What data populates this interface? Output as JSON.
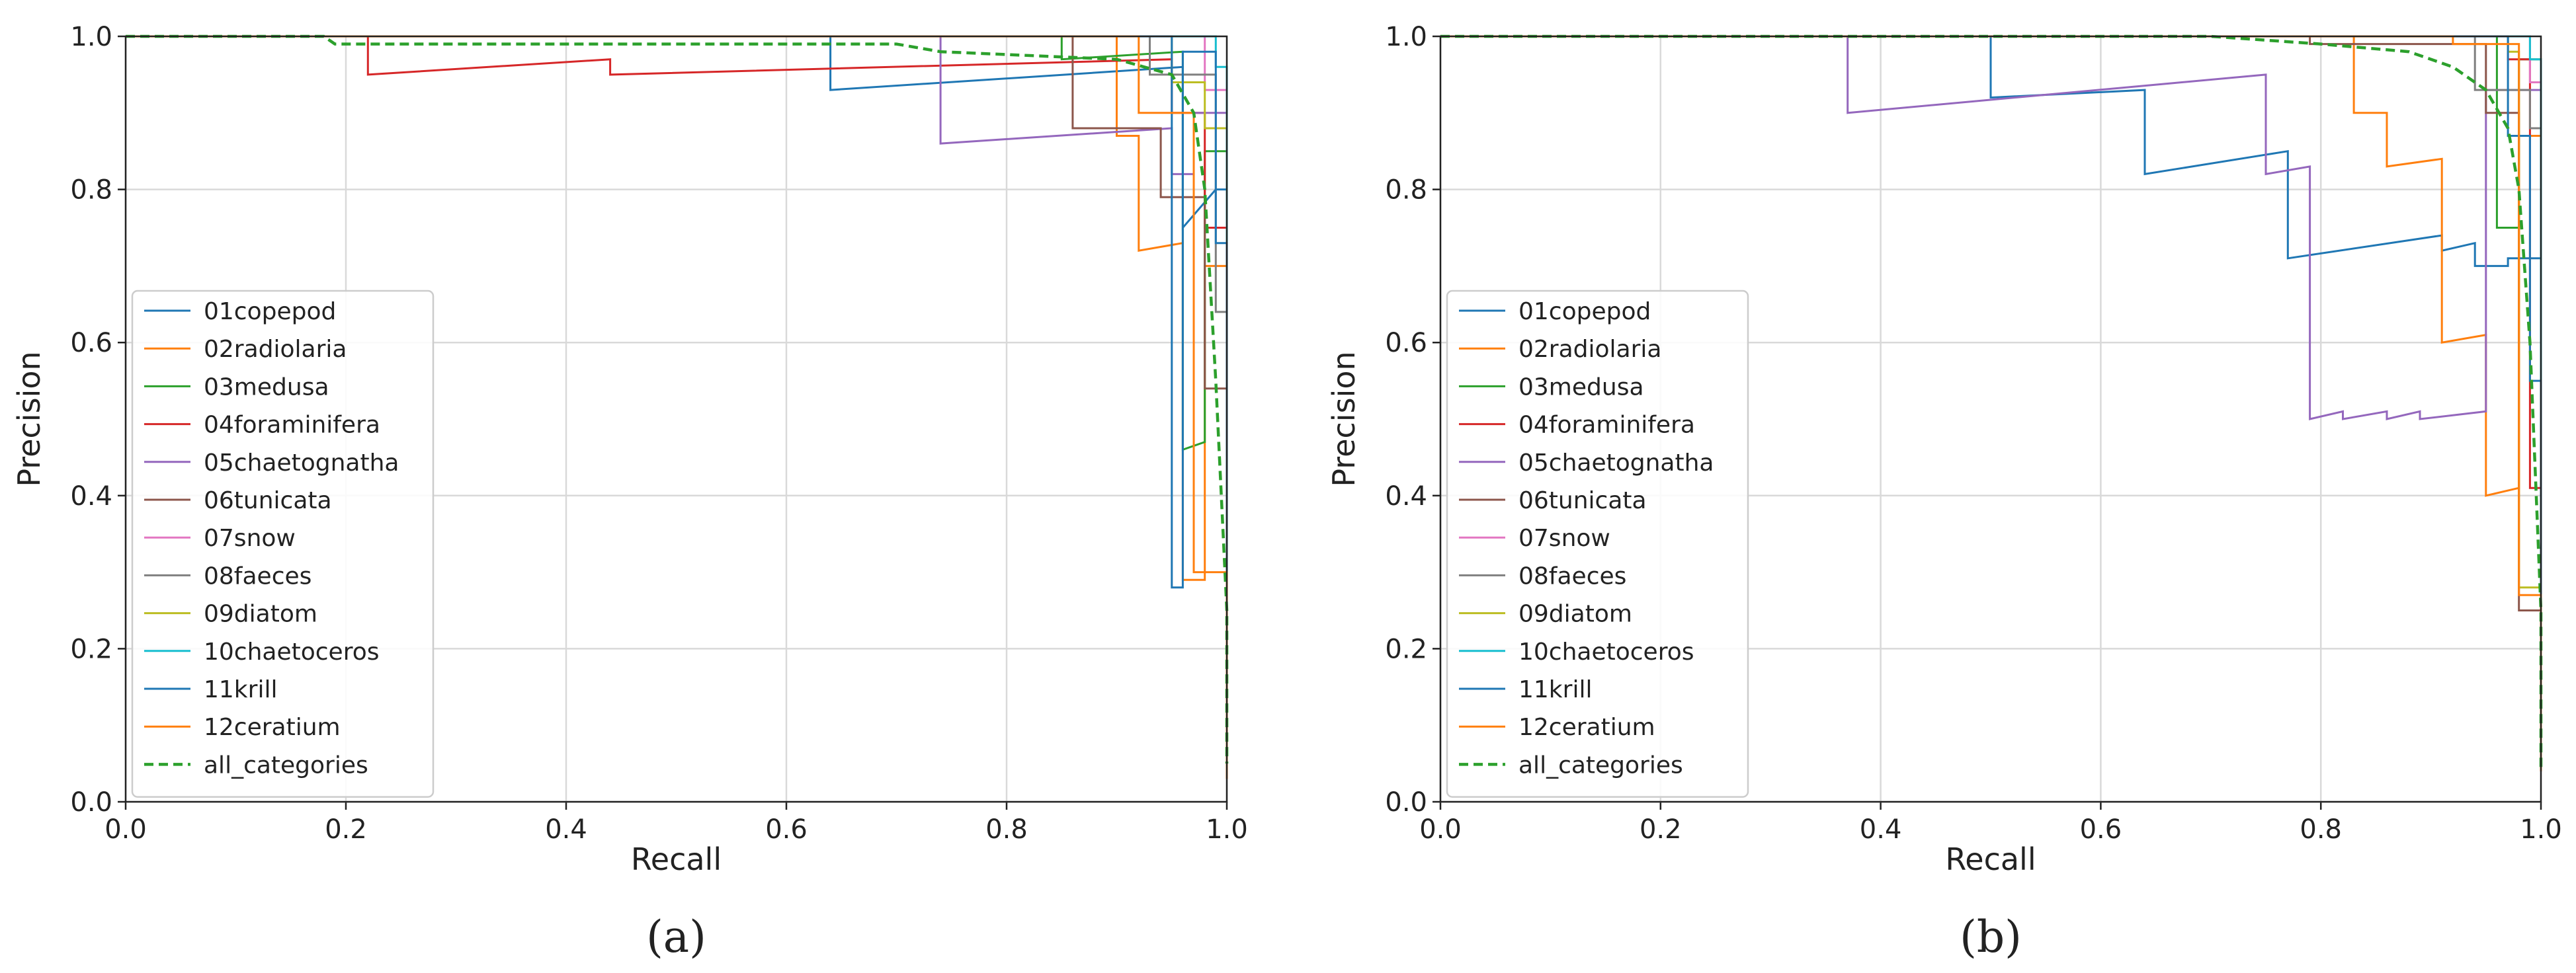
{
  "chart_data": [
    {
      "type": "line",
      "panel": "(a)",
      "xlabel": "Recall",
      "ylabel": "Precision",
      "xlim": [
        0,
        1
      ],
      "ylim": [
        0,
        1
      ],
      "xticks": [
        "0.0",
        "0.2",
        "0.4",
        "0.6",
        "0.8",
        "1.0"
      ],
      "yticks": [
        "0.0",
        "0.2",
        "0.4",
        "0.6",
        "0.8",
        "1.0"
      ],
      "grid": true,
      "legend_position": "center-left",
      "series": [
        {
          "name": "01copepod",
          "color": "#1f77b4",
          "style": "solid",
          "points": [
            [
              0,
              1
            ],
            [
              0.64,
              1
            ],
            [
              0.64,
              0.93
            ],
            [
              0.96,
              0.96
            ],
            [
              0.96,
              0.75
            ],
            [
              0.99,
              0.8
            ],
            [
              1.0,
              0.8
            ],
            [
              1.0,
              0.05
            ]
          ]
        },
        {
          "name": "02radiolaria",
          "color": "#ff7f0e",
          "style": "solid",
          "points": [
            [
              0,
              1
            ],
            [
              0.9,
              1
            ],
            [
              0.9,
              0.87
            ],
            [
              0.92,
              0.87
            ],
            [
              0.92,
              0.72
            ],
            [
              0.96,
              0.73
            ],
            [
              0.96,
              0.29
            ],
            [
              0.98,
              0.29
            ],
            [
              0.98,
              0.7
            ],
            [
              1.0,
              0.7
            ],
            [
              1.0,
              0.03
            ]
          ]
        },
        {
          "name": "03medusa",
          "color": "#2ca02c",
          "style": "solid",
          "points": [
            [
              0,
              1
            ],
            [
              0.85,
              1
            ],
            [
              0.85,
              0.97
            ],
            [
              0.96,
              0.98
            ],
            [
              0.96,
              0.46
            ],
            [
              0.98,
              0.47
            ],
            [
              0.98,
              0.85
            ],
            [
              1.0,
              0.85
            ],
            [
              1.0,
              0.05
            ]
          ]
        },
        {
          "name": "04foraminifera",
          "color": "#d62728",
          "style": "solid",
          "points": [
            [
              0,
              1
            ],
            [
              0.22,
              1
            ],
            [
              0.22,
              0.95
            ],
            [
              0.44,
              0.97
            ],
            [
              0.44,
              0.95
            ],
            [
              0.95,
              0.97
            ],
            [
              0.95,
              0.9
            ],
            [
              0.98,
              0.9
            ],
            [
              0.98,
              0.75
            ],
            [
              1.0,
              0.75
            ],
            [
              1.0,
              0.05
            ]
          ]
        },
        {
          "name": "05chaetognatha",
          "color": "#9467bd",
          "style": "solid",
          "points": [
            [
              0,
              1
            ],
            [
              0.74,
              1
            ],
            [
              0.74,
              0.86
            ],
            [
              0.95,
              0.88
            ],
            [
              0.95,
              0.82
            ],
            [
              0.97,
              0.82
            ],
            [
              0.97,
              0.9
            ],
            [
              1.0,
              0.9
            ],
            [
              1.0,
              0.05
            ]
          ]
        },
        {
          "name": "06tunicata",
          "color": "#8c564b",
          "style": "solid",
          "points": [
            [
              0,
              1
            ],
            [
              0.86,
              1
            ],
            [
              0.86,
              0.88
            ],
            [
              0.94,
              0.88
            ],
            [
              0.94,
              0.79
            ],
            [
              0.98,
              0.79
            ],
            [
              0.98,
              0.54
            ],
            [
              1.0,
              0.54
            ],
            [
              1.0,
              0.05
            ]
          ]
        },
        {
          "name": "07snow",
          "color": "#e377c2",
          "style": "solid",
          "points": [
            [
              0,
              1
            ],
            [
              0.98,
              1
            ],
            [
              0.98,
              0.93
            ],
            [
              1.0,
              0.93
            ],
            [
              1.0,
              0.05
            ]
          ]
        },
        {
          "name": "08faeces",
          "color": "#7f7f7f",
          "style": "solid",
          "points": [
            [
              0,
              1
            ],
            [
              0.93,
              1
            ],
            [
              0.93,
              0.95
            ],
            [
              0.99,
              0.95
            ],
            [
              0.99,
              0.64
            ],
            [
              1.0,
              0.64
            ],
            [
              1.0,
              0.05
            ]
          ]
        },
        {
          "name": "09diatom",
          "color": "#bcbd22",
          "style": "solid",
          "points": [
            [
              0,
              1
            ],
            [
              0.95,
              1
            ],
            [
              0.95,
              0.94
            ],
            [
              0.98,
              0.94
            ],
            [
              0.98,
              0.88
            ],
            [
              1.0,
              0.88
            ],
            [
              1.0,
              0.05
            ]
          ]
        },
        {
          "name": "10chaetoceros",
          "color": "#17becf",
          "style": "solid",
          "points": [
            [
              0,
              1
            ],
            [
              0.99,
              1
            ],
            [
              0.99,
              0.96
            ],
            [
              1.0,
              0.96
            ],
            [
              1.0,
              0.05
            ]
          ]
        },
        {
          "name": "11krill",
          "color": "#1f77b4",
          "style": "solid",
          "points": [
            [
              0,
              1
            ],
            [
              0.95,
              1
            ],
            [
              0.95,
              0.28
            ],
            [
              0.96,
              0.28
            ],
            [
              0.96,
              0.98
            ],
            [
              0.99,
              0.98
            ],
            [
              0.99,
              0.73
            ],
            [
              1.0,
              0.73
            ],
            [
              1.0,
              0.05
            ]
          ]
        },
        {
          "name": "12ceratium",
          "color": "#ff7f0e",
          "style": "solid",
          "points": [
            [
              0,
              1
            ],
            [
              0.92,
              1
            ],
            [
              0.92,
              0.9
            ],
            [
              0.97,
              0.9
            ],
            [
              0.97,
              0.3
            ],
            [
              1.0,
              0.3
            ],
            [
              1.0,
              0.05
            ]
          ]
        },
        {
          "name": "all_categories",
          "color": "#2ca02c",
          "style": "dashed",
          "points": [
            [
              0,
              1
            ],
            [
              0.18,
              1
            ],
            [
              0.19,
              0.99
            ],
            [
              0.7,
              0.99
            ],
            [
              0.74,
              0.98
            ],
            [
              0.9,
              0.97
            ],
            [
              0.95,
              0.95
            ],
            [
              0.97,
              0.9
            ],
            [
              0.98,
              0.8
            ],
            [
              0.99,
              0.55
            ],
            [
              1.0,
              0.25
            ],
            [
              1.0,
              0.05
            ]
          ]
        }
      ]
    },
    {
      "type": "line",
      "panel": "(b)",
      "xlabel": "Recall",
      "ylabel": "Precision",
      "xlim": [
        0,
        1
      ],
      "ylim": [
        0,
        1
      ],
      "xticks": [
        "0.0",
        "0.2",
        "0.4",
        "0.6",
        "0.8",
        "1.0"
      ],
      "yticks": [
        "0.0",
        "0.2",
        "0.4",
        "0.6",
        "0.8",
        "1.0"
      ],
      "grid": true,
      "legend_position": "center-left",
      "series": [
        {
          "name": "01copepod",
          "color": "#1f77b4",
          "style": "solid",
          "points": [
            [
              0,
              1
            ],
            [
              0.5,
              1
            ],
            [
              0.5,
              0.92
            ],
            [
              0.64,
              0.93
            ],
            [
              0.64,
              0.82
            ],
            [
              0.77,
              0.85
            ],
            [
              0.77,
              0.71
            ],
            [
              0.91,
              0.74
            ],
            [
              0.91,
              0.72
            ],
            [
              0.94,
              0.73
            ],
            [
              0.94,
              0.7
            ],
            [
              0.97,
              0.7
            ],
            [
              0.97,
              0.71
            ],
            [
              1.0,
              0.71
            ],
            [
              1.0,
              0.04
            ]
          ]
        },
        {
          "name": "02radiolaria",
          "color": "#ff7f0e",
          "style": "solid",
          "points": [
            [
              0,
              1
            ],
            [
              0.83,
              1
            ],
            [
              0.83,
              0.9
            ],
            [
              0.86,
              0.9
            ],
            [
              0.86,
              0.83
            ],
            [
              0.91,
              0.84
            ],
            [
              0.91,
              0.6
            ],
            [
              0.95,
              0.61
            ],
            [
              0.95,
              0.4
            ],
            [
              0.98,
              0.41
            ],
            [
              0.98,
              0.87
            ],
            [
              1.0,
              0.87
            ],
            [
              1.0,
              0.04
            ]
          ]
        },
        {
          "name": "03medusa",
          "color": "#2ca02c",
          "style": "solid",
          "points": [
            [
              0,
              1
            ],
            [
              0.96,
              1
            ],
            [
              0.96,
              0.75
            ],
            [
              0.98,
              0.75
            ],
            [
              0.98,
              0.97
            ],
            [
              1.0,
              0.97
            ],
            [
              1.0,
              0.04
            ]
          ]
        },
        {
          "name": "04foraminifera",
          "color": "#d62728",
          "style": "solid",
          "points": [
            [
              0,
              1
            ],
            [
              0.97,
              1
            ],
            [
              0.97,
              0.97
            ],
            [
              0.99,
              0.97
            ],
            [
              0.99,
              0.41
            ],
            [
              1.0,
              0.41
            ],
            [
              1.0,
              0.04
            ]
          ]
        },
        {
          "name": "05chaetognatha",
          "color": "#9467bd",
          "style": "solid",
          "points": [
            [
              0,
              1
            ],
            [
              0.37,
              1
            ],
            [
              0.37,
              0.9
            ],
            [
              0.75,
              0.95
            ],
            [
              0.75,
              0.82
            ],
            [
              0.79,
              0.83
            ],
            [
              0.79,
              0.5
            ],
            [
              0.82,
              0.51
            ],
            [
              0.82,
              0.5
            ],
            [
              0.86,
              0.51
            ],
            [
              0.86,
              0.5
            ],
            [
              0.89,
              0.51
            ],
            [
              0.89,
              0.5
            ],
            [
              0.95,
              0.51
            ],
            [
              0.95,
              0.93
            ],
            [
              1.0,
              0.93
            ],
            [
              1.0,
              0.04
            ]
          ]
        },
        {
          "name": "06tunicata",
          "color": "#8c564b",
          "style": "solid",
          "points": [
            [
              0,
              1
            ],
            [
              0.79,
              1
            ],
            [
              0.79,
              0.99
            ],
            [
              0.95,
              0.99
            ],
            [
              0.95,
              0.9
            ],
            [
              0.98,
              0.9
            ],
            [
              0.98,
              0.25
            ],
            [
              1.0,
              0.25
            ],
            [
              1.0,
              0.04
            ]
          ]
        },
        {
          "name": "07snow",
          "color": "#e377c2",
          "style": "solid",
          "points": [
            [
              0,
              1
            ],
            [
              0.99,
              1
            ],
            [
              0.99,
              0.94
            ],
            [
              1.0,
              0.94
            ],
            [
              1.0,
              0.04
            ]
          ]
        },
        {
          "name": "08faeces",
          "color": "#7f7f7f",
          "style": "solid",
          "points": [
            [
              0,
              1
            ],
            [
              0.94,
              1
            ],
            [
              0.94,
              0.93
            ],
            [
              0.99,
              0.93
            ],
            [
              0.99,
              0.88
            ],
            [
              1.0,
              0.88
            ],
            [
              1.0,
              0.04
            ]
          ]
        },
        {
          "name": "09diatom",
          "color": "#bcbd22",
          "style": "solid",
          "points": [
            [
              0,
              1
            ],
            [
              0.97,
              1
            ],
            [
              0.97,
              0.98
            ],
            [
              0.98,
              0.98
            ],
            [
              0.98,
              0.28
            ],
            [
              1.0,
              0.28
            ],
            [
              1.0,
              0.04
            ]
          ]
        },
        {
          "name": "10chaetoceros",
          "color": "#17becf",
          "style": "solid",
          "points": [
            [
              0,
              1
            ],
            [
              0.99,
              1
            ],
            [
              0.99,
              0.97
            ],
            [
              1.0,
              0.97
            ],
            [
              1.0,
              0.04
            ]
          ]
        },
        {
          "name": "11krill",
          "color": "#1f77b4",
          "style": "solid",
          "points": [
            [
              0,
              1
            ],
            [
              0.97,
              1
            ],
            [
              0.97,
              0.87
            ],
            [
              0.99,
              0.87
            ],
            [
              0.99,
              0.55
            ],
            [
              1.0,
              0.55
            ],
            [
              1.0,
              0.04
            ]
          ]
        },
        {
          "name": "12ceratium",
          "color": "#ff7f0e",
          "style": "solid",
          "points": [
            [
              0,
              1
            ],
            [
              0.92,
              1
            ],
            [
              0.92,
              0.99
            ],
            [
              0.98,
              0.99
            ],
            [
              0.98,
              0.27
            ],
            [
              1.0,
              0.27
            ],
            [
              1.0,
              0.04
            ]
          ]
        },
        {
          "name": "all_categories",
          "color": "#2ca02c",
          "style": "dashed",
          "points": [
            [
              0,
              1
            ],
            [
              0.7,
              1
            ],
            [
              0.8,
              0.99
            ],
            [
              0.88,
              0.98
            ],
            [
              0.92,
              0.96
            ],
            [
              0.95,
              0.93
            ],
            [
              0.97,
              0.88
            ],
            [
              0.98,
              0.8
            ],
            [
              0.99,
              0.6
            ],
            [
              1.0,
              0.25
            ],
            [
              1.0,
              0.04
            ]
          ]
        }
      ]
    }
  ]
}
